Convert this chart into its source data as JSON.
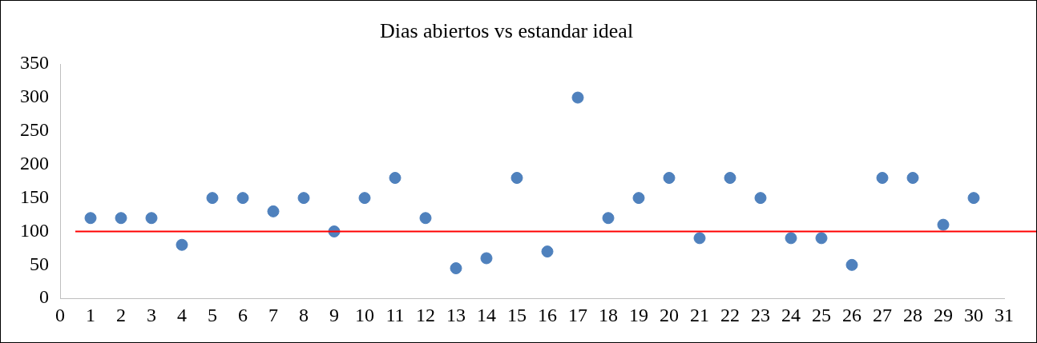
{
  "chart_data": {
    "type": "scatter",
    "title": "Dias abiertos vs estandar ideal",
    "x": [
      1,
      2,
      3,
      4,
      5,
      6,
      7,
      8,
      9,
      10,
      11,
      12,
      13,
      14,
      15,
      16,
      17,
      18,
      19,
      20,
      21,
      22,
      23,
      24,
      25,
      26,
      27,
      28,
      29,
      30
    ],
    "values": [
      120,
      120,
      120,
      80,
      150,
      150,
      130,
      150,
      100,
      150,
      180,
      120,
      45,
      60,
      180,
      70,
      300,
      120,
      150,
      180,
      90,
      180,
      150,
      90,
      90,
      50,
      180,
      180,
      110,
      150
    ],
    "color": "#4f81bd",
    "marker": "circle",
    "xlim": [
      0,
      31
    ],
    "xticks": [
      0,
      1,
      2,
      3,
      4,
      5,
      6,
      7,
      8,
      9,
      10,
      11,
      12,
      13,
      14,
      15,
      16,
      17,
      18,
      19,
      20,
      21,
      22,
      23,
      24,
      25,
      26,
      27,
      28,
      29,
      30,
      31
    ],
    "ylim": [
      0,
      350
    ],
    "yticks": [
      0,
      50,
      100,
      150,
      200,
      250,
      300,
      350
    ],
    "grid": false,
    "legend": false,
    "ref_lines": [
      {
        "axis": "y",
        "value": 100,
        "color": "#ff0000"
      }
    ]
  }
}
